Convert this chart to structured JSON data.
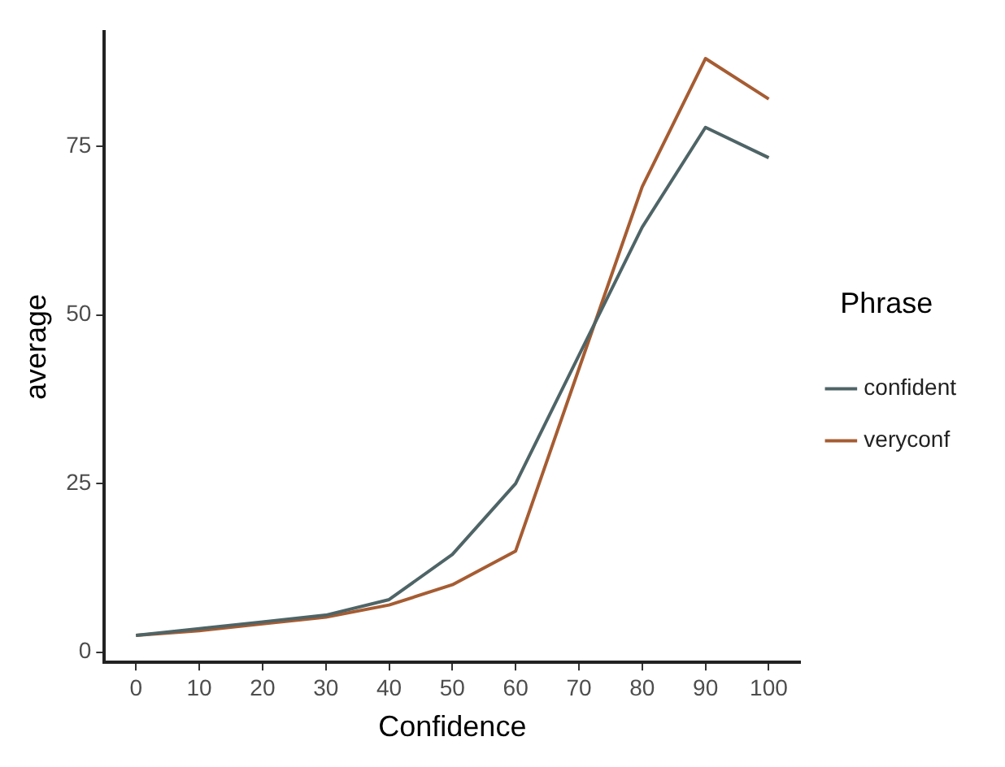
{
  "chart_data": {
    "type": "line",
    "xlabel": "Confidence",
    "ylabel": "average",
    "legend_title": "Phrase",
    "legend": "right",
    "x": [
      0,
      10,
      20,
      30,
      40,
      50,
      60,
      70,
      80,
      90,
      100
    ],
    "series": [
      {
        "name": "confident",
        "color": "#4f6466",
        "values": [
          2.5,
          3.5,
          4.5,
          5.5,
          7.8,
          14.5,
          25,
          44,
          63,
          77.8,
          73.3
        ]
      },
      {
        "name": "veryconf",
        "color": "#a65c32",
        "values": [
          2.5,
          3.2,
          4.2,
          5.2,
          7,
          10,
          15,
          42,
          69,
          88,
          82
        ]
      }
    ],
    "xlim": [
      -5,
      105
    ],
    "xticks": [
      0,
      10,
      20,
      30,
      40,
      50,
      60,
      70,
      80,
      90,
      100
    ],
    "ylim": [
      -1.5,
      92
    ],
    "yticks": [
      0,
      25,
      50,
      75
    ],
    "grid": false,
    "marker": "none",
    "line_style": "solid"
  }
}
